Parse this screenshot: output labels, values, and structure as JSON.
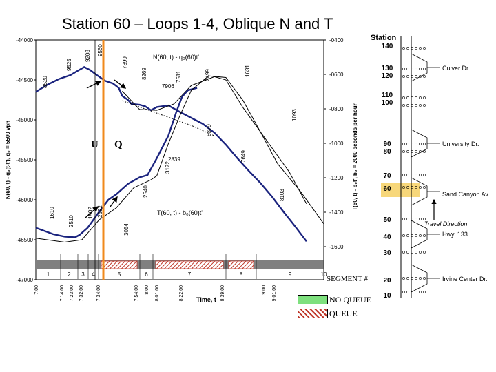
{
  "title": "Station 60 – Loops 1-4, Oblique N and T",
  "chart_data": {
    "type": "line",
    "left_axis": {
      "label": "N(60, t) - q₀(t-t'), q₀ = 5500 vph",
      "ticks": [
        "-44000",
        "-44500",
        "-45000",
        "-45500",
        "-46000",
        "-46500",
        "-47000"
      ]
    },
    "right_axis": {
      "label": "T(60, t) - b₀t', b₀ = 2000 seconds per hour",
      "ticks": [
        "-0400",
        "-0600",
        "-0800",
        "-1000",
        "-1200",
        "-1400",
        "-1600"
      ]
    },
    "x_axis": {
      "label": "Time, t",
      "ticks": [
        "7:00",
        "7:14:00",
        "7:23:00",
        "7:32:00",
        "7:34:00",
        "7:54:00",
        "8:00",
        "8:01:00",
        "8:22:00",
        "8:39:00",
        "9:00",
        "9:01:00"
      ]
    },
    "series": [
      {
        "name": "N(60,t) - q₀(60)t'",
        "color": "#1a237e",
        "values": [
          [
            7.0,
            -44650
          ],
          [
            7.1,
            -44560
          ],
          [
            7.2,
            -44490
          ],
          [
            7.3,
            -44440
          ],
          [
            7.37,
            -44380
          ],
          [
            7.42,
            -44340
          ],
          [
            7.47,
            -44375
          ],
          [
            7.53,
            -44440
          ],
          [
            7.6,
            -44510
          ],
          [
            7.67,
            -44545
          ],
          [
            7.72,
            -44600
          ],
          [
            7.75,
            -44700
          ],
          [
            7.8,
            -44750
          ],
          [
            7.83,
            -44800
          ],
          [
            7.9,
            -44810
          ],
          [
            7.95,
            -44830
          ],
          [
            8.0,
            -44880
          ],
          [
            8.05,
            -44840
          ],
          [
            8.15,
            -44820
          ],
          [
            8.25,
            -44900
          ],
          [
            8.33,
            -44960
          ],
          [
            8.45,
            -45050
          ],
          [
            8.55,
            -45160
          ],
          [
            8.65,
            -45310
          ],
          [
            8.75,
            -45480
          ],
          [
            8.85,
            -45640
          ],
          [
            8.95,
            -45790
          ],
          [
            9.05,
            -45960
          ],
          [
            9.15,
            -46150
          ],
          [
            9.25,
            -46330
          ],
          [
            9.35,
            -46520
          ]
        ]
      },
      {
        "name": "N(60,t) secondary",
        "color": "#000000",
        "values": [
          [
            7.75,
            -44640
          ],
          [
            7.9,
            -44870
          ],
          [
            8.05,
            -44880
          ],
          [
            8.2,
            -44800
          ],
          [
            8.35,
            -44570
          ],
          [
            8.55,
            -44460
          ],
          [
            8.65,
            -44500
          ],
          [
            8.8,
            -44850
          ],
          [
            9.0,
            -45250
          ],
          [
            9.2,
            -45650
          ],
          [
            9.35,
            -46050
          ]
        ]
      },
      {
        "name": "T(60,t) - b₀(60)t'",
        "color": "#1a237e",
        "values": [
          [
            7.0,
            -46350
          ],
          [
            7.15,
            -46430
          ],
          [
            7.25,
            -46460
          ],
          [
            7.34,
            -46470
          ],
          [
            7.38,
            -46440
          ],
          [
            7.45,
            -46350
          ],
          [
            7.55,
            -46150
          ],
          [
            7.63,
            -46000
          ],
          [
            7.7,
            -45930
          ],
          [
            7.8,
            -45800
          ],
          [
            7.9,
            -45720
          ],
          [
            7.97,
            -45690
          ],
          [
            8.05,
            -45480
          ],
          [
            8.15,
            -45200
          ],
          [
            8.22,
            -44900
          ],
          [
            8.27,
            -44710
          ],
          [
            8.32,
            -44630
          ],
          [
            8.4,
            -44600
          ]
        ]
      },
      {
        "name": "T(60,t) secondary",
        "color": "#000000",
        "values": [
          [
            7.0,
            -46480
          ],
          [
            7.25,
            -46530
          ],
          [
            7.4,
            -46500
          ],
          [
            7.55,
            -46250
          ],
          [
            7.7,
            -46100
          ],
          [
            7.85,
            -45850
          ],
          [
            8.0,
            -45750
          ],
          [
            8.05,
            -45700
          ],
          [
            8.15,
            -45300
          ],
          [
            8.25,
            -44950
          ],
          [
            8.35,
            -44630
          ],
          [
            8.5,
            -44450
          ],
          [
            8.65,
            -44470
          ],
          [
            8.8,
            -44760
          ],
          [
            8.95,
            -45150
          ],
          [
            9.1,
            -45550
          ],
          [
            9.3,
            -45900
          ],
          [
            9.5,
            -46300
          ]
        ]
      },
      {
        "name": "reference",
        "color": "#000000",
        "dashed": true,
        "values": [
          [
            7.75,
            -44760
          ],
          [
            8.35,
            -45070
          ],
          [
            8.55,
            -45200
          ]
        ]
      }
    ],
    "data_labels": [
      "8520",
      "9525",
      "9208",
      "9560",
      "7899",
      "8269",
      "7511",
      "2499",
      "1631",
      "7906",
      "1093",
      "8379",
      "7649",
      "2839",
      "3172",
      "2540",
      "8103",
      "1610",
      "2510",
      "1902",
      "2592",
      "3054"
    ],
    "series_labels": [
      "N(60, t) - q₀(60)t'",
      "T(60, t) - b₀(60)t'"
    ],
    "markers": [
      "U",
      "Q"
    ],
    "segment_axis": {
      "label": "SEGMENT #",
      "segments": [
        {
          "id": "1",
          "queue": false
        },
        {
          "id": "2",
          "queue": false
        },
        {
          "id": "3",
          "queue": false
        },
        {
          "id": "4",
          "queue": false
        },
        {
          "id": "5",
          "queue": true
        },
        {
          "id": "6",
          "queue": false
        },
        {
          "id": "7",
          "queue": true
        },
        {
          "id": "8",
          "queue": true
        },
        {
          "id": "9",
          "queue": false
        },
        {
          "id": "10",
          "queue": false
        }
      ]
    }
  },
  "legend": {
    "no_queue": "NO QUEUE",
    "queue": "QUEUE",
    "no_queue_color": "#7ee07e",
    "queue_color": "#c0392b"
  },
  "freeway": {
    "header": "Station",
    "stations": [
      "140",
      "130",
      "120",
      "110",
      "100",
      "90",
      "80",
      "70",
      "60",
      "50",
      "40",
      "30",
      "20",
      "10"
    ],
    "highlighted_station": "60",
    "ramps": [
      "Culver Dr.",
      "University Dr.",
      "Sand Canyon Av",
      "Hwy. 133",
      "Irvine Center Dr."
    ],
    "direction_label": "Travel Direction"
  },
  "colors": {
    "highlight_line": "#f08a1c",
    "grid_band": "#808080",
    "station_highlight": "#f7d77a"
  }
}
